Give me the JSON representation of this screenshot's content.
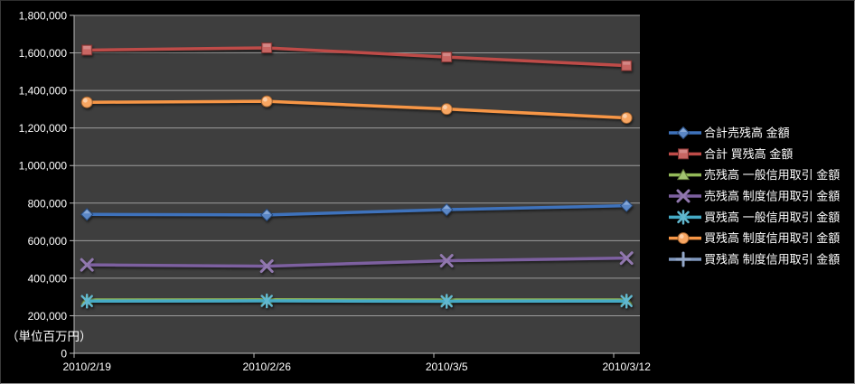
{
  "chart": {
    "background": "#000000",
    "plot_background": "#3E3E3E",
    "gridline_color": "#9C9C9C",
    "axis_color": "#BBBBBB",
    "text_color": "#FFFFFF"
  },
  "chart_data": {
    "type": "line",
    "title": "",
    "unit_note": "（単位百万円）",
    "x": [
      "2010/2/19",
      "2010/2/26",
      "2010/3/5",
      "2010/3/12"
    ],
    "ylim": [
      0,
      1800000
    ],
    "y_tick_interval": 200000,
    "y_ticks": [
      0,
      200000,
      400000,
      600000,
      800000,
      1000000,
      1200000,
      1400000,
      1600000,
      1800000
    ],
    "grid": true,
    "legend_position": "right",
    "series": [
      {
        "name": "合計売残高 金額",
        "marker": "diamond",
        "color": "#3E72BC",
        "values": [
          740000,
          737000,
          765000,
          786000
        ]
      },
      {
        "name": "合計 買残高 金額",
        "marker": "square",
        "color": "#BE4B48",
        "values": [
          1615000,
          1627000,
          1578000,
          1532000
        ]
      },
      {
        "name": "売残高 一般信用取引 金額",
        "marker": "triangle",
        "color": "#93B958",
        "values": [
          284000,
          285000,
          284000,
          284000
        ]
      },
      {
        "name": "売残高 制度信用取引 金額",
        "marker": "x",
        "color": "#7D60A0",
        "values": [
          471000,
          464000,
          493000,
          507000
        ]
      },
      {
        "name": "買残高 一般信用取引 金額",
        "marker": "asterisk",
        "color": "#45AAC5",
        "values": [
          278000,
          279000,
          277000,
          278000
        ]
      },
      {
        "name": "買残高 制度信用取引 金額",
        "marker": "circle",
        "color": "#F79646",
        "values": [
          1337000,
          1342000,
          1301000,
          1254000
        ]
      },
      {
        "name": "買残高 制度信用取引 金額",
        "marker": "plus",
        "color": "#8098BE",
        "values": [],
        "visible_in_plot": false
      }
    ]
  }
}
